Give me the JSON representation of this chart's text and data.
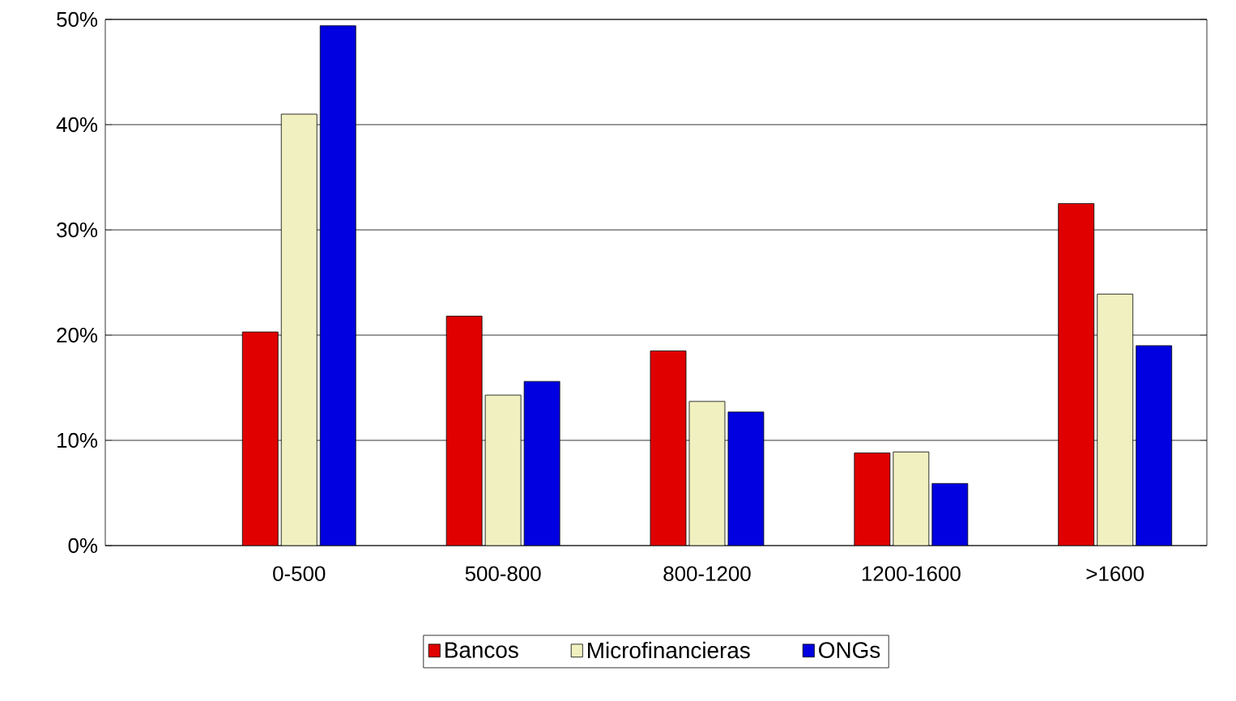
{
  "chart_data": {
    "type": "bar",
    "categories": [
      "0-500",
      "500-800",
      "800-1200",
      "1200-1600",
      ">1600"
    ],
    "series": [
      {
        "name": "Bancos",
        "color": "#e00000",
        "values": [
          20.3,
          21.8,
          18.5,
          8.8,
          32.5
        ]
      },
      {
        "name": "Microfinancieras",
        "color": "#f0f0c0",
        "values": [
          41,
          14.3,
          13.7,
          8.9,
          23.9
        ]
      },
      {
        "name": "ONGs",
        "color": "#0000e0",
        "values": [
          49.4,
          15.6,
          12.7,
          5.9,
          19
        ]
      }
    ],
    "ylim": [
      0,
      50
    ],
    "yticks": [
      {
        "value": 0,
        "label": "0%"
      },
      {
        "value": 10,
        "label": "10%"
      },
      {
        "value": 20,
        "label": "20%"
      },
      {
        "value": 30,
        "label": "30%"
      },
      {
        "value": 40,
        "label": "40%"
      },
      {
        "value": 50,
        "label": "50%"
      }
    ],
    "grid": "y",
    "legend": "bottom"
  }
}
